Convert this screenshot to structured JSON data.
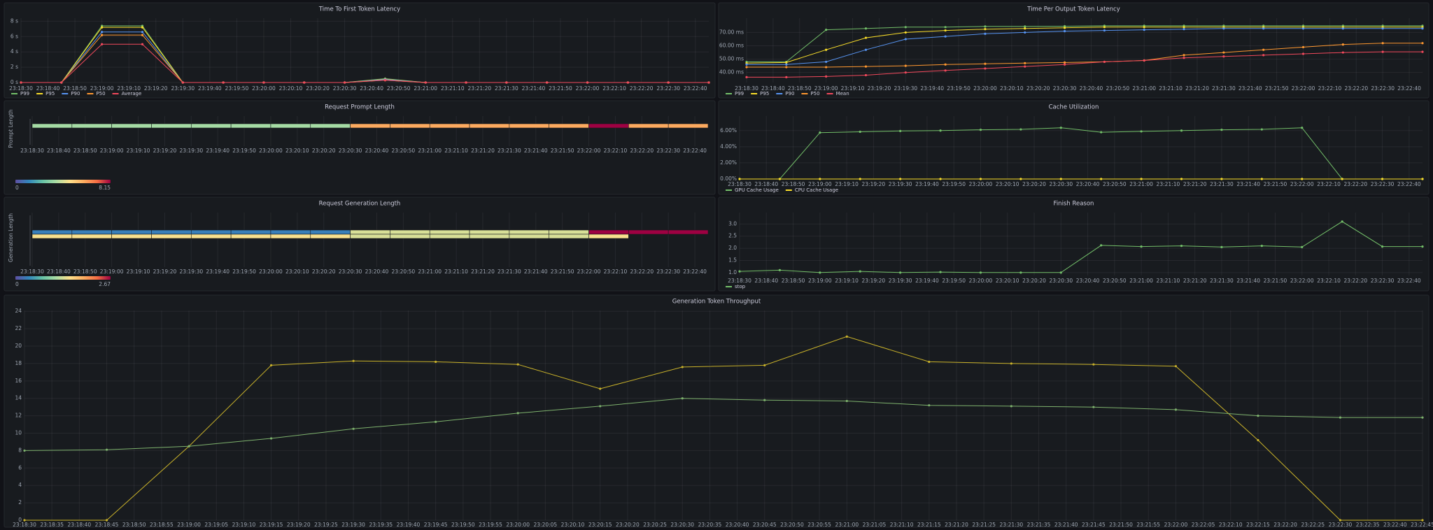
{
  "chart_data": [
    {
      "type": "line",
      "title": "Time To First Token Latency",
      "x": [
        "23:18:30",
        "23:18:45",
        "23:19:00",
        "23:19:15",
        "23:19:30",
        "23:19:45",
        "23:20:00",
        "23:20:15",
        "23:20:30",
        "23:20:45",
        "23:21:00",
        "23:21:15",
        "23:21:30",
        "23:21:45",
        "23:22:00",
        "23:22:15",
        "23:22:30",
        "23:22:45"
      ],
      "series": [
        {
          "name": "P99",
          "color": "#73bf69",
          "values": [
            0,
            0,
            7.4,
            7.4,
            0,
            0,
            0,
            0,
            0,
            0.5,
            0,
            0,
            0,
            0,
            0,
            0,
            0,
            0
          ]
        },
        {
          "name": "P95",
          "color": "#fade2a",
          "values": [
            0,
            0,
            7.2,
            7.2,
            0,
            0,
            0,
            0,
            0,
            0.45,
            0,
            0,
            0,
            0,
            0,
            0,
            0,
            0
          ]
        },
        {
          "name": "P90",
          "color": "#5794f2",
          "values": [
            0,
            0,
            6.6,
            6.6,
            0,
            0,
            0,
            0,
            0,
            0.4,
            0,
            0,
            0,
            0,
            0,
            0,
            0,
            0
          ]
        },
        {
          "name": "P50",
          "color": "#ff9830",
          "values": [
            0,
            0,
            6.2,
            6.2,
            0,
            0,
            0,
            0,
            0,
            0.3,
            0,
            0,
            0,
            0,
            0,
            0,
            0,
            0
          ]
        },
        {
          "name": "Average",
          "color": "#f2495c",
          "values": [
            0,
            0,
            5.0,
            5.0,
            0,
            0,
            0,
            0,
            0,
            0.3,
            0,
            0,
            0,
            0,
            0,
            0,
            0,
            0
          ]
        }
      ],
      "ylim": [
        0,
        8.4
      ],
      "yticks": [
        {
          "value": 0,
          "label": "0 s"
        },
        {
          "value": 2,
          "label": "2 s"
        },
        {
          "value": 4,
          "label": "4 s"
        },
        {
          "value": 6,
          "label": "6 s"
        },
        {
          "value": 8,
          "label": "8 s"
        }
      ],
      "xticks": [
        "23:18:30",
        "23:18:40",
        "23:18:50",
        "23:19:00",
        "23:19:10",
        "23:19:20",
        "23:19:30",
        "23:19:40",
        "23:19:50",
        "23:20:00",
        "23:20:10",
        "23:20:20",
        "23:20:30",
        "23:20:40",
        "23:20:50",
        "23:21:00",
        "23:21:10",
        "23:21:20",
        "23:21:30",
        "23:21:40",
        "23:21:50",
        "23:22:00",
        "23:22:10",
        "23:22:20",
        "23:22:30",
        "23:22:40"
      ],
      "grid": true,
      "legend": "bottom-left"
    },
    {
      "type": "line",
      "title": "Time Per Output Token Latency",
      "x": [
        "23:18:30",
        "23:18:45",
        "23:19:00",
        "23:19:15",
        "23:19:30",
        "23:19:45",
        "23:20:00",
        "23:20:15",
        "23:20:30",
        "23:20:45",
        "23:21:00",
        "23:21:15",
        "23:21:30",
        "23:21:45",
        "23:22:00",
        "23:22:15",
        "23:22:30",
        "23:22:45"
      ],
      "series": [
        {
          "name": "P99",
          "color": "#73bf69",
          "values": [
            48,
            48,
            72,
            73,
            74,
            74,
            74.5,
            74.5,
            74.7,
            75,
            75,
            75,
            75,
            75,
            75,
            75,
            75,
            75
          ]
        },
        {
          "name": "P95",
          "color": "#fade2a",
          "values": [
            47,
            47.5,
            57,
            66,
            70,
            71.5,
            72.5,
            73,
            73.5,
            74,
            74,
            74,
            74,
            74,
            74,
            74,
            74,
            74
          ]
        },
        {
          "name": "P90",
          "color": "#5794f2",
          "values": [
            46,
            46,
            48,
            57,
            65,
            67,
            69,
            70,
            71,
            71.5,
            72,
            72.5,
            73,
            73,
            73,
            73,
            73,
            73
          ]
        },
        {
          "name": "P50",
          "color": "#ff9830",
          "values": [
            44,
            44,
            44,
            44.5,
            45,
            46,
            46.5,
            47,
            47.5,
            48,
            49,
            53,
            55,
            57,
            59,
            61,
            62,
            62
          ]
        },
        {
          "name": "Mean",
          "color": "#f2495c",
          "values": [
            36.5,
            36.5,
            37,
            38,
            40,
            41.5,
            43,
            44.5,
            46,
            48,
            49,
            51,
            52,
            53,
            54,
            55,
            55.5,
            55.5
          ]
        }
      ],
      "ylim": [
        32.5,
        80.7
      ],
      "yticks": [
        {
          "value": 40,
          "label": "40.00 ms"
        },
        {
          "value": 50,
          "label": "50.00 ms"
        },
        {
          "value": 60,
          "label": "60.00 ms"
        },
        {
          "value": 70,
          "label": "70.00 ms"
        }
      ],
      "xticks": [
        "23:18:30",
        "23:18:40",
        "23:18:50",
        "23:19:00",
        "23:19:10",
        "23:19:20",
        "23:19:30",
        "23:19:40",
        "23:19:50",
        "23:20:00",
        "23:20:10",
        "23:20:20",
        "23:20:30",
        "23:20:40",
        "23:20:50",
        "23:21:00",
        "23:21:10",
        "23:21:20",
        "23:21:30",
        "23:21:40",
        "23:21:50",
        "23:22:00",
        "23:22:10",
        "23:22:20",
        "23:22:30",
        "23:22:40"
      ],
      "grid": true,
      "legend": "bottom-left"
    },
    {
      "type": "heatmap",
      "title": "Request Prompt Length",
      "ylabel": "Prompt Length",
      "x": [
        "23:18:30",
        "23:18:45",
        "23:19:00",
        "23:19:15",
        "23:19:30",
        "23:19:45",
        "23:20:00",
        "23:20:15",
        "23:20:30",
        "23:20:45",
        "23:21:00",
        "23:21:15",
        "23:21:30",
        "23:21:45",
        "23:22:00",
        "23:22:15",
        "23:22:30"
      ],
      "rows": [
        {
          "values": [
            3.4,
            3.4,
            3.4,
            3.4,
            3.4,
            3.4,
            3.4,
            3.4,
            5.9,
            5.9,
            5.9,
            5.9,
            5.9,
            5.9,
            8.15,
            5.9,
            5.9
          ]
        }
      ],
      "color_range": [
        0,
        8.15
      ],
      "colorscale": [
        "#5e4fa2",
        "#3288bd",
        "#66c2a5",
        "#abdda4",
        "#fee08b",
        "#fdae61",
        "#f46d43",
        "#9e0142"
      ],
      "xticks": [
        "23:18:30",
        "23:18:40",
        "23:18:50",
        "23:19:00",
        "23:19:10",
        "23:19:20",
        "23:19:30",
        "23:19:40",
        "23:19:50",
        "23:20:00",
        "23:20:10",
        "23:20:20",
        "23:20:30",
        "23:20:40",
        "23:20:50",
        "23:21:00",
        "23:21:10",
        "23:21:20",
        "23:21:30",
        "23:21:40",
        "23:21:50",
        "23:22:00",
        "23:22:10",
        "23:22:20",
        "23:22:30",
        "23:22:40"
      ]
    },
    {
      "type": "line",
      "title": "Cache Utilization",
      "x": [
        "23:18:30",
        "23:18:45",
        "23:19:00",
        "23:19:15",
        "23:19:30",
        "23:19:45",
        "23:20:00",
        "23:20:15",
        "23:20:30",
        "23:20:45",
        "23:21:00",
        "23:21:15",
        "23:21:30",
        "23:21:45",
        "23:22:00",
        "23:22:15",
        "23:22:30",
        "23:22:45"
      ],
      "series": [
        {
          "name": "GPU Cache Usage",
          "color": "#73bf69",
          "values": [
            0,
            0,
            5.75,
            5.85,
            5.95,
            6.0,
            6.1,
            6.15,
            6.35,
            5.8,
            5.9,
            6.0,
            6.1,
            6.15,
            6.35,
            0,
            0,
            0
          ]
        },
        {
          "name": "CPU Cache Usage",
          "color": "#fade2a",
          "values": [
            0,
            0,
            0,
            0,
            0,
            0,
            0,
            0,
            0,
            0,
            0,
            0,
            0,
            0,
            0,
            0,
            0,
            0
          ]
        }
      ],
      "ylim": [
        0,
        7.8
      ],
      "yticks": [
        {
          "value": 0,
          "label": "0.00%"
        },
        {
          "value": 2,
          "label": "2.00%"
        },
        {
          "value": 4,
          "label": "4.00%"
        },
        {
          "value": 6,
          "label": "6.00%"
        }
      ],
      "xticks": [
        "23:18:30",
        "23:18:40",
        "23:18:50",
        "23:19:00",
        "23:19:10",
        "23:19:20",
        "23:19:30",
        "23:19:40",
        "23:19:50",
        "23:20:00",
        "23:20:10",
        "23:20:20",
        "23:20:30",
        "23:20:40",
        "23:20:50",
        "23:21:00",
        "23:21:10",
        "23:21:20",
        "23:21:30",
        "23:21:40",
        "23:21:50",
        "23:22:00",
        "23:22:10",
        "23:22:20",
        "23:22:30",
        "23:22:40"
      ],
      "grid": true,
      "legend": "bottom-left"
    },
    {
      "type": "heatmap",
      "title": "Request Generation Length",
      "ylabel": "Generation Length",
      "x": [
        "23:18:30",
        "23:18:45",
        "23:19:00",
        "23:19:15",
        "23:19:30",
        "23:19:45",
        "23:20:00",
        "23:20:15",
        "23:20:30",
        "23:20:45",
        "23:21:00",
        "23:21:15",
        "23:21:30",
        "23:21:45",
        "23:22:00",
        "23:22:15",
        "23:22:30"
      ],
      "rows": [
        {
          "values": [
            0.32,
            0.32,
            0.32,
            0.32,
            0.32,
            0.32,
            0.32,
            0.32,
            1.35,
            1.35,
            1.35,
            1.35,
            1.35,
            1.35,
            2.67,
            2.67,
            2.67
          ]
        },
        {
          "values": [
            1.5,
            1.5,
            1.5,
            1.5,
            1.5,
            1.5,
            1.5,
            1.5,
            1.35,
            1.35,
            1.35,
            1.35,
            1.35,
            1.35,
            1.5,
            null,
            null
          ]
        }
      ],
      "color_range": [
        0,
        2.67
      ],
      "colorscale": [
        "#5e4fa2",
        "#3288bd",
        "#66c2a5",
        "#abdda4",
        "#fee08b",
        "#fdae61",
        "#f46d43",
        "#9e0142"
      ],
      "xticks": [
        "23:18:30",
        "23:18:40",
        "23:18:50",
        "23:19:00",
        "23:19:10",
        "23:19:20",
        "23:19:30",
        "23:19:40",
        "23:19:50",
        "23:20:00",
        "23:20:10",
        "23:20:20",
        "23:20:30",
        "23:20:40",
        "23:20:50",
        "23:21:00",
        "23:21:10",
        "23:21:20",
        "23:21:30",
        "23:21:40",
        "23:21:50",
        "23:22:00",
        "23:22:10",
        "23:22:20",
        "23:22:30",
        "23:22:40"
      ]
    },
    {
      "type": "line",
      "title": "Finish Reason",
      "x": [
        "23:18:30",
        "23:18:45",
        "23:19:00",
        "23:19:15",
        "23:19:30",
        "23:19:45",
        "23:20:00",
        "23:20:15",
        "23:20:30",
        "23:20:45",
        "23:21:00",
        "23:21:15",
        "23:21:30",
        "23:21:45",
        "23:22:00",
        "23:22:15",
        "23:22:30",
        "23:22:45"
      ],
      "series": [
        {
          "name": "stop",
          "color": "#73bf69",
          "values": [
            1.05,
            1.1,
            1.0,
            1.05,
            1.0,
            1.02,
            1.0,
            1.0,
            1.0,
            2.12,
            2.07,
            2.1,
            2.05,
            2.1,
            2.05,
            3.1,
            2.07,
            2.07
          ]
        }
      ],
      "ylim": [
        0.88,
        3.47
      ],
      "yticks": [
        {
          "value": 1,
          "label": "1.0"
        },
        1.5,
        {
          "value": 2,
          "label": "2.0"
        },
        2.5,
        {
          "value": 3,
          "label": "3.0"
        }
      ],
      "xticks": [
        "23:18:30",
        "23:18:40",
        "23:18:50",
        "23:19:00",
        "23:19:10",
        "23:19:20",
        "23:19:30",
        "23:19:40",
        "23:19:50",
        "23:20:00",
        "23:20:10",
        "23:20:20",
        "23:20:30",
        "23:20:40",
        "23:20:50",
        "23:21:00",
        "23:21:10",
        "23:21:20",
        "23:21:30",
        "23:21:40",
        "23:21:50",
        "23:22:00",
        "23:22:10",
        "23:22:20",
        "23:22:30",
        "23:22:40"
      ],
      "grid": true,
      "legend": "bottom-left"
    },
    {
      "type": "line",
      "title": "Generation Token Throughput",
      "x": [
        "23:18:30",
        "23:18:45",
        "23:19:00",
        "23:19:15",
        "23:19:30",
        "23:19:45",
        "23:20:00",
        "23:20:15",
        "23:20:30",
        "23:20:45",
        "23:21:00",
        "23:21:15",
        "23:21:30",
        "23:21:45",
        "23:22:00",
        "23:22:15",
        "23:22:30",
        "23:22:45"
      ],
      "series": [
        {
          "color": "#c9b22a",
          "values": [
            0,
            0,
            8.5,
            17.8,
            18.3,
            18.2,
            17.9,
            15.1,
            17.6,
            17.8,
            21.1,
            18.2,
            18.0,
            17.9,
            17.7,
            9.2,
            0,
            0
          ]
        },
        {
          "color": "#7eb26d",
          "values": [
            8.0,
            8.1,
            8.5,
            9.4,
            10.5,
            11.3,
            12.3,
            13.1,
            14.0,
            13.8,
            13.7,
            13.2,
            13.1,
            13.0,
            12.7,
            12.0,
            11.8,
            11.8
          ]
        }
      ],
      "ylim": [
        0,
        24.1
      ],
      "yticks": [
        0,
        2,
        4,
        6,
        8,
        10,
        12,
        14,
        16,
        18,
        20,
        22,
        24
      ],
      "xticks": [
        "23:18:30",
        "23:18:35",
        "23:18:40",
        "23:18:45",
        "23:18:50",
        "23:18:55",
        "23:19:00",
        "23:19:05",
        "23:19:10",
        "23:19:15",
        "23:19:20",
        "23:19:25",
        "23:19:30",
        "23:19:35",
        "23:19:40",
        "23:19:45",
        "23:19:50",
        "23:19:55",
        "23:20:00",
        "23:20:05",
        "23:20:10",
        "23:20:15",
        "23:20:20",
        "23:20:25",
        "23:20:30",
        "23:20:35",
        "23:20:40",
        "23:20:45",
        "23:20:50",
        "23:20:55",
        "23:21:00",
        "23:21:05",
        "23:21:10",
        "23:21:15",
        "23:21:20",
        "23:21:25",
        "23:21:30",
        "23:21:35",
        "23:21:40",
        "23:21:45",
        "23:21:50",
        "23:21:55",
        "23:22:00",
        "23:22:05",
        "23:22:10",
        "23:22:15",
        "23:22:20",
        "23:22:25",
        "23:22:30",
        "23:22:35",
        "23:22:40",
        "23:22:45"
      ],
      "grid": true
    }
  ]
}
